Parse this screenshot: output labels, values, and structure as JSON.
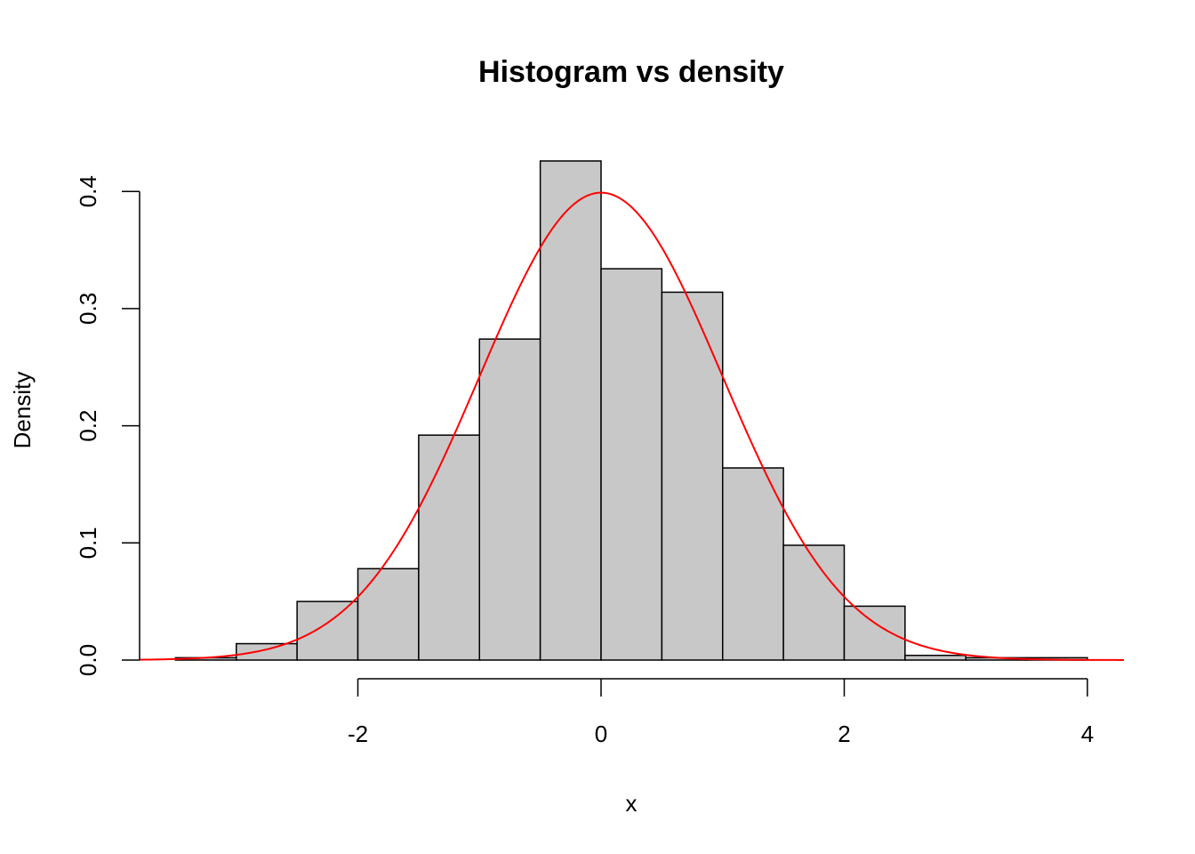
{
  "chart_data": {
    "type": "bar",
    "title": "Histogram vs density",
    "xlabel": "x",
    "ylabel": "Density",
    "xlim": [
      -3.8,
      4.3
    ],
    "ylim": [
      0,
      0.43
    ],
    "x_ticks": [
      -2,
      0,
      2,
      4
    ],
    "y_ticks": [
      0.0,
      0.1,
      0.2,
      0.3,
      0.4
    ],
    "x_tick_labels": [
      "-2",
      "0",
      "2",
      "4"
    ],
    "y_tick_labels": [
      "0.0",
      "0.1",
      "0.2",
      "0.3",
      "0.4"
    ],
    "grid": false,
    "bin_edges": [
      -3.5,
      -3.0,
      -2.5,
      -2.0,
      -1.5,
      -1.0,
      -0.5,
      0.0,
      0.5,
      1.0,
      1.5,
      2.0,
      2.5,
      3.0,
      3.5,
      4.0
    ],
    "values": [
      0.002,
      0.014,
      0.05,
      0.078,
      0.192,
      0.274,
      0.426,
      0.334,
      0.314,
      0.164,
      0.098,
      0.046,
      0.004,
      0.002,
      0.002
    ],
    "bar_color": "#c8c8c8",
    "curve": {
      "type": "line",
      "function": "standard normal density",
      "x_range": [
        -3.8,
        4.3
      ],
      "color": "#ff0000"
    }
  }
}
